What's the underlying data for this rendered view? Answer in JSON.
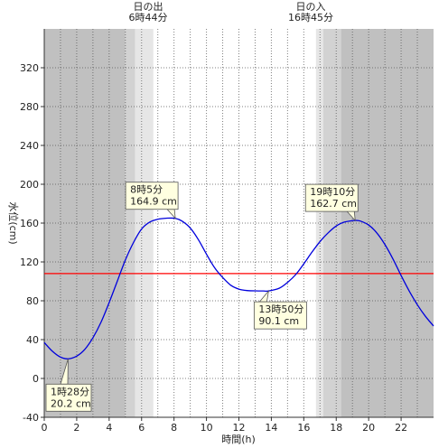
{
  "chart_data": {
    "type": "line",
    "xlabel": "時間(h)",
    "ylabel": "水位(cm)",
    "xlim": [
      0,
      24
    ],
    "ylim": [
      -40,
      360
    ],
    "xticks": [
      0,
      2,
      4,
      6,
      8,
      10,
      12,
      14,
      16,
      18,
      20,
      22
    ],
    "xtick_labels": [
      "0",
      "2",
      "4",
      "6",
      "8",
      "10",
      "12",
      "14",
      "16",
      "18",
      "20",
      "22"
    ],
    "yticks": [
      -40,
      0,
      40,
      80,
      120,
      160,
      200,
      240,
      280,
      320
    ],
    "ytick_labels": [
      "-40",
      "0",
      "40",
      "80",
      "120",
      "160",
      "200",
      "240",
      "280",
      "320"
    ],
    "grid": true,
    "series": [
      {
        "color": "#0000dd",
        "x": [
          0,
          0.5,
          1,
          1.47,
          2,
          2.5,
          3,
          3.5,
          4,
          4.5,
          5,
          5.5,
          6,
          6.5,
          7,
          7.5,
          8.08,
          8.5,
          9,
          9.5,
          10,
          10.5,
          11,
          11.5,
          12,
          12.5,
          13,
          13.5,
          13.83,
          14.5,
          15,
          15.5,
          16,
          16.5,
          17,
          17.5,
          18,
          18.5,
          19.17,
          19.5,
          20,
          20.5,
          21,
          21.5,
          22,
          22.5,
          23,
          23.5,
          24
        ],
        "y": [
          37,
          28,
          22,
          20.2,
          23,
          30,
          42,
          58,
          78,
          100,
          122,
          140,
          154,
          161,
          164,
          165,
          164.9,
          162,
          155,
          143,
          128,
          114,
          104,
          96,
          92,
          90.5,
          90.2,
          90.1,
          90.1,
          93,
          99,
          107,
          118,
          130,
          141,
          150,
          157,
          161,
          162.7,
          162,
          158,
          150,
          138,
          123,
          106,
          90,
          76,
          64,
          54
        ]
      }
    ],
    "reference_line": {
      "y": 108,
      "color": "#ff0000"
    },
    "sunrise": {
      "label": "日の出",
      "time": "6時44分",
      "hour": 6.73
    },
    "sunset": {
      "label": "日の入",
      "time": "16時45分",
      "hour": 16.75
    },
    "twilight": {
      "morning_start": 5.0,
      "morning_mid": 5.6,
      "evening_mid": 17.2,
      "evening_end": 18.3
    },
    "annotations": [
      {
        "time": "1時28分",
        "value": "20.2 cm",
        "x": 1.47,
        "y": 20.2,
        "kind": "low"
      },
      {
        "time": "8時5分",
        "value": "164.9 cm",
        "x": 8.08,
        "y": 164.9,
        "kind": "high"
      },
      {
        "time": "13時50分",
        "value": "90.1 cm",
        "x": 13.83,
        "y": 90.1,
        "kind": "low"
      },
      {
        "time": "19時10分",
        "value": "162.7 cm",
        "x": 19.17,
        "y": 162.7,
        "kind": "high"
      }
    ],
    "colors": {
      "night": "#c0c0c0",
      "twilight_dark": "#d2d2d2",
      "twilight_light": "#e6e6e6",
      "day": "#ffffff",
      "label_bg": "#ffffe0"
    }
  }
}
